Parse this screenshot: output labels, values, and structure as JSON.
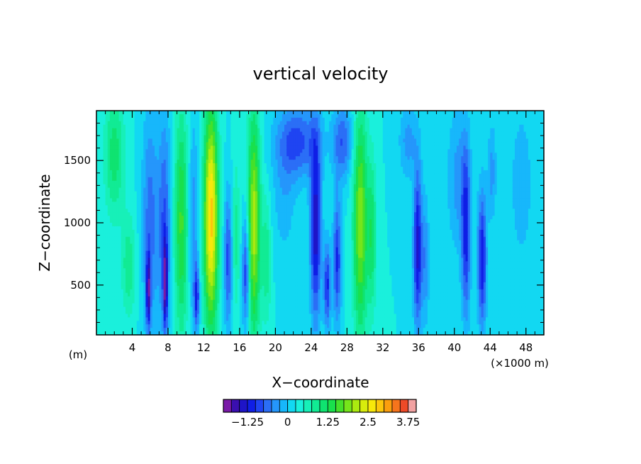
{
  "chart_data": {
    "type": "heatmap",
    "title": "vertical velocity",
    "xlabel": "X−coordinate",
    "ylabel": "Z−coordinate",
    "x_unit_label": "(×1000 m)",
    "y_unit_label": "(m)",
    "xlim": [
      0,
      50
    ],
    "ylim": [
      100,
      1900
    ],
    "x_ticks": [
      4,
      8,
      12,
      16,
      20,
      24,
      28,
      32,
      36,
      40,
      44,
      48
    ],
    "x_tick_labels": [
      "4",
      "8",
      "12",
      "16",
      "20",
      "24",
      "28",
      "32",
      "36",
      "40",
      "44",
      "48"
    ],
    "y_ticks": [
      500,
      1000,
      1500
    ],
    "y_tick_labels": [
      "500",
      "1000",
      "1500"
    ],
    "colorbar": {
      "range": [
        -2.0,
        4.0
      ],
      "levels": 24,
      "tick_values": [
        -1.25,
        0,
        1.25,
        2.5,
        3.75
      ],
      "tick_labels": [
        "−1.25",
        "0",
        "1.25",
        "2.5",
        "3.75"
      ],
      "colors": [
        "#7a1aa8",
        "#3a0fb0",
        "#1e14c8",
        "#0f1ee6",
        "#1f44f2",
        "#2b6ef6",
        "#2596fb",
        "#17b7fb",
        "#12d8f2",
        "#1af0dc",
        "#17f0b8",
        "#11eb94",
        "#0fe370",
        "#19e04c",
        "#45e02a",
        "#76e51a",
        "#abea10",
        "#d8ec0c",
        "#f8e80a",
        "#fcc60c",
        "#fb9e0e",
        "#f6741c",
        "#ee4a28",
        "#f2a2a2"
      ]
    },
    "background_value": 0.25,
    "features": [
      {
        "x": 2.0,
        "z": 1550,
        "value": 0.9,
        "half_width": 1.1,
        "half_height": 500
      },
      {
        "x": 3.6,
        "z": 650,
        "value": 0.7,
        "half_width": 0.8,
        "half_height": 400
      },
      {
        "x": 6.0,
        "z": 1000,
        "value": -0.9,
        "half_width": 0.9,
        "half_height": 900
      },
      {
        "x": 5.8,
        "z": 450,
        "value": -1.6,
        "half_width": 0.25,
        "half_height": 300
      },
      {
        "x": 7.6,
        "z": 1000,
        "value": -1.0,
        "half_width": 0.7,
        "half_height": 900
      },
      {
        "x": 7.7,
        "z": 500,
        "value": -1.7,
        "half_width": 0.25,
        "half_height": 350
      },
      {
        "x": 9.5,
        "z": 1000,
        "value": 1.3,
        "half_width": 0.8,
        "half_height": 900
      },
      {
        "x": 10.8,
        "z": 1000,
        "value": -0.7,
        "half_width": 0.6,
        "half_height": 800
      },
      {
        "x": 12.8,
        "z": 1050,
        "value": 2.6,
        "half_width": 0.8,
        "half_height": 900
      },
      {
        "x": 11.2,
        "z": 400,
        "value": -1.3,
        "half_width": 0.3,
        "half_height": 250
      },
      {
        "x": 14.7,
        "z": 700,
        "value": -1.1,
        "half_width": 0.45,
        "half_height": 550
      },
      {
        "x": 15.6,
        "z": 900,
        "value": 0.6,
        "half_width": 0.4,
        "half_height": 600
      },
      {
        "x": 16.7,
        "z": 600,
        "value": -1.3,
        "half_width": 0.4,
        "half_height": 450
      },
      {
        "x": 17.6,
        "z": 1000,
        "value": 1.9,
        "half_width": 0.7,
        "half_height": 900
      },
      {
        "x": 19.0,
        "z": 700,
        "value": 0.7,
        "half_width": 0.5,
        "half_height": 500
      },
      {
        "x": 22.5,
        "z": 1650,
        "value": -1.1,
        "half_width": 2.4,
        "half_height": 300
      },
      {
        "x": 21.0,
        "z": 1200,
        "value": -0.4,
        "half_width": 1.3,
        "half_height": 500
      },
      {
        "x": 24.5,
        "z": 950,
        "value": -1.7,
        "half_width": 0.6,
        "half_height": 750
      },
      {
        "x": 25.8,
        "z": 500,
        "value": -1.3,
        "half_width": 0.4,
        "half_height": 350
      },
      {
        "x": 26.9,
        "z": 700,
        "value": -1.3,
        "half_width": 0.45,
        "half_height": 500
      },
      {
        "x": 27.5,
        "z": 1650,
        "value": -1.0,
        "half_width": 1.1,
        "half_height": 300
      },
      {
        "x": 29.5,
        "z": 1000,
        "value": 1.7,
        "half_width": 0.8,
        "half_height": 900
      },
      {
        "x": 30.8,
        "z": 900,
        "value": 0.9,
        "half_width": 0.5,
        "half_height": 600
      },
      {
        "x": 34.8,
        "z": 1650,
        "value": -0.6,
        "half_width": 1.0,
        "half_height": 300
      },
      {
        "x": 35.9,
        "z": 800,
        "value": -1.6,
        "half_width": 0.5,
        "half_height": 650
      },
      {
        "x": 36.8,
        "z": 700,
        "value": -0.7,
        "half_width": 0.4,
        "half_height": 500
      },
      {
        "x": 40.4,
        "z": 1350,
        "value": -0.6,
        "half_width": 1.2,
        "half_height": 600
      },
      {
        "x": 41.3,
        "z": 900,
        "value": -1.3,
        "half_width": 0.5,
        "half_height": 700
      },
      {
        "x": 43.1,
        "z": 700,
        "value": -1.5,
        "half_width": 0.5,
        "half_height": 550
      },
      {
        "x": 44.2,
        "z": 1400,
        "value": -0.6,
        "half_width": 0.5,
        "half_height": 400
      },
      {
        "x": 47.5,
        "z": 1300,
        "value": -0.4,
        "half_width": 1.4,
        "half_height": 700
      }
    ]
  }
}
